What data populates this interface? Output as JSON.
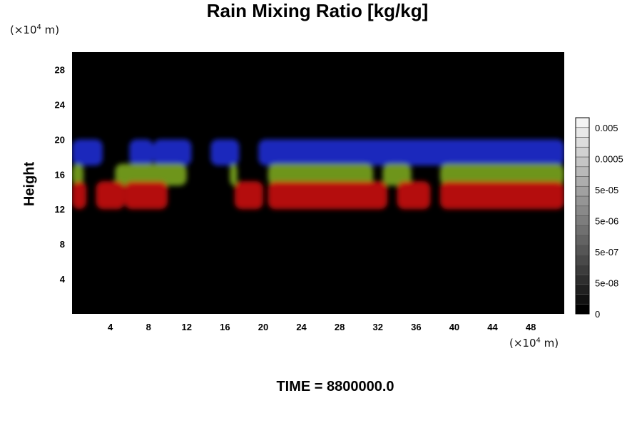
{
  "chart_data": {
    "type": "heatmap",
    "title": "Rain Mixing Ratio [kg/kg]",
    "ylabel": "Height",
    "xlabel": "",
    "x_unit": {
      "prefix": "(×10",
      "exp": "4",
      "suffix": " m)"
    },
    "y_unit": {
      "prefix": "(×10",
      "exp": "4",
      "suffix": " m)"
    },
    "xlim": [
      0,
      51.5
    ],
    "ylim": [
      0,
      30
    ],
    "x_ticks": [
      4,
      8,
      12,
      16,
      20,
      24,
      28,
      32,
      36,
      40,
      44,
      48
    ],
    "y_ticks": [
      4,
      8,
      12,
      16,
      20,
      24,
      28
    ],
    "background_color": "#000000",
    "bands": [
      {
        "layer": "blue",
        "y_range": [
          17,
          20
        ],
        "color": "#1d2bd0",
        "segments": [
          [
            0,
            3.2
          ],
          [
            6,
            8.5
          ],
          [
            8.5,
            12.5
          ],
          [
            14.5,
            17.5
          ],
          [
            19.5,
            51.5
          ]
        ]
      },
      {
        "layer": "green",
        "y_range": [
          14.7,
          17.2
        ],
        "color": "#7aa51e",
        "segments": [
          [
            0,
            1.2
          ],
          [
            4.5,
            12
          ],
          [
            16.5,
            17.3
          ],
          [
            20.5,
            31.5
          ],
          [
            32.5,
            35.5
          ],
          [
            38.5,
            51.5
          ]
        ]
      },
      {
        "layer": "red",
        "y_range": [
          12,
          15.2
        ],
        "color": "#c81010",
        "segments": [
          [
            0,
            1.5
          ],
          [
            2.5,
            5.5
          ],
          [
            5.5,
            10
          ],
          [
            17,
            20
          ],
          [
            20.5,
            33
          ],
          [
            34,
            37.5
          ],
          [
            38.5,
            51.5
          ]
        ]
      }
    ],
    "colorbar": {
      "labels": [
        "0.005",
        "0.0005",
        "5e-05",
        "5e-06",
        "5e-07",
        "5e-08",
        "0"
      ],
      "low_color": "#000000",
      "high_color": "#f4f4f4"
    },
    "footer": "TIME = 8800000.0"
  }
}
